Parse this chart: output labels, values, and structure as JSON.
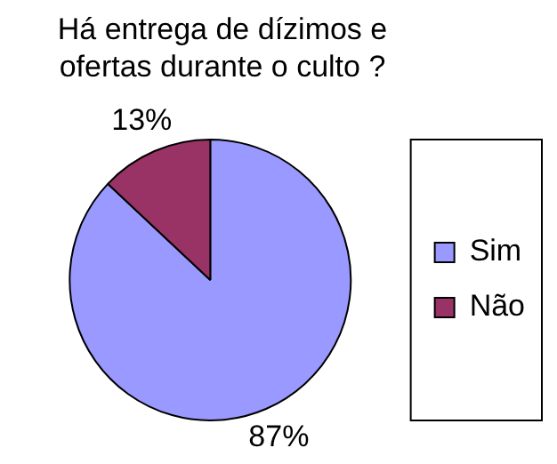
{
  "chart_data": {
    "type": "pie",
    "title": "Há entrega de dízimos e ofertas durante o culto ?",
    "categories": [
      "Sim",
      "Não"
    ],
    "values": [
      87,
      13
    ],
    "colors": [
      "#9999ff",
      "#993366"
    ],
    "value_labels": [
      "87%",
      "13%"
    ],
    "legend": "right"
  }
}
